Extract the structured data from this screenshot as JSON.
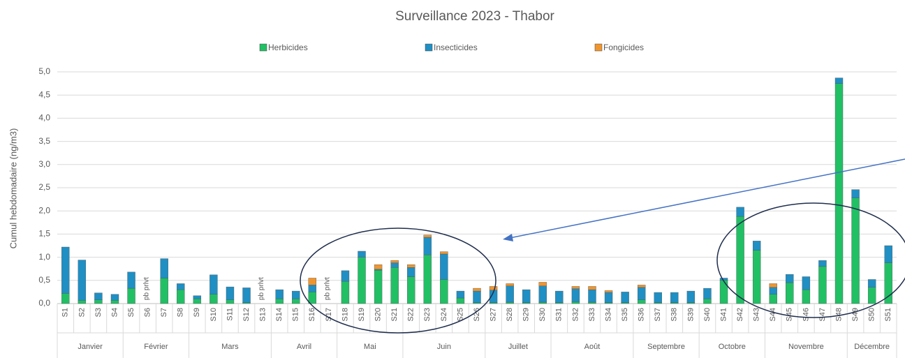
{
  "chart_data": {
    "type": "bar",
    "stacked": true,
    "title": "Surveillance 2023 - Thabor",
    "y_label": "Cumul hebdomadaire (ng/m3)",
    "categories": [
      "S1",
      "S2",
      "S3",
      "S4",
      "S5",
      "S6",
      "S7",
      "S8",
      "S9",
      "S10",
      "S11",
      "S12",
      "S13",
      "S14",
      "S15",
      "S16",
      "S17",
      "S18",
      "S19",
      "S20",
      "S21",
      "S22",
      "S23",
      "S24",
      "S25",
      "S26",
      "S27",
      "S28",
      "S29",
      "S30",
      "S31",
      "S32",
      "S33",
      "S34",
      "S35",
      "S36",
      "S37",
      "S38",
      "S39",
      "S40",
      "S41",
      "S42",
      "S43",
      "S44",
      "S45",
      "S46",
      "S47",
      "S48",
      "S49",
      "S50",
      "S51"
    ],
    "series": [
      {
        "name": "Herbicides",
        "color": "#21c065",
        "values": [
          0.22,
          0.07,
          0.08,
          0.07,
          0.33,
          null,
          0.55,
          0.3,
          0.1,
          0.2,
          0.08,
          0.02,
          null,
          0.1,
          0.1,
          0.25,
          null,
          0.48,
          1.0,
          0.72,
          0.78,
          0.58,
          1.05,
          0.52,
          0.12,
          0.02,
          0.02,
          0.03,
          0.02,
          0.03,
          0.02,
          0.04,
          0.03,
          0.02,
          0.02,
          0.08,
          0.02,
          0.02,
          0.02,
          0.1,
          0.5,
          1.88,
          1.15,
          0.2,
          0.45,
          0.3,
          0.8,
          4.75,
          2.28,
          0.35,
          0.88
        ]
      },
      {
        "name": "Insecticides",
        "color": "#1f8fc4",
        "values": [
          1.0,
          0.87,
          0.15,
          0.13,
          0.35,
          null,
          0.42,
          0.13,
          0.07,
          0.42,
          0.28,
          0.32,
          null,
          0.2,
          0.17,
          0.15,
          null,
          0.23,
          0.13,
          0.02,
          0.1,
          0.2,
          0.38,
          0.55,
          0.15,
          0.25,
          0.27,
          0.35,
          0.28,
          0.35,
          0.25,
          0.28,
          0.27,
          0.22,
          0.23,
          0.27,
          0.22,
          0.22,
          0.25,
          0.23,
          0.05,
          0.2,
          0.2,
          0.15,
          0.18,
          0.28,
          0.13,
          0.12,
          0.18,
          0.17,
          0.37
        ]
      },
      {
        "name": "Fongicides",
        "color": "#f0952e",
        "values": [
          0,
          0,
          0,
          0,
          0,
          null,
          0,
          0,
          0,
          0,
          0,
          0,
          null,
          0,
          0,
          0.15,
          null,
          0,
          0,
          0.1,
          0.05,
          0.06,
          0.05,
          0.05,
          0,
          0.06,
          0.08,
          0.05,
          0,
          0.08,
          0,
          0.05,
          0.07,
          0.04,
          0,
          0.05,
          0,
          0,
          0,
          0,
          0,
          0,
          0,
          0.08,
          0,
          0,
          0,
          0,
          0,
          0,
          0
        ]
      }
    ],
    "annotations": [
      "pb prlvt",
      "pb prlvt",
      "pb prlvt"
    ],
    "months": [
      {
        "label": "Janvier",
        "span": 4
      },
      {
        "label": "Février",
        "span": 4
      },
      {
        "label": "Mars",
        "span": 5
      },
      {
        "label": "Avril",
        "span": 4
      },
      {
        "label": "Mai",
        "span": 4
      },
      {
        "label": "Juin",
        "span": 5
      },
      {
        "label": "Juillet",
        "span": 4
      },
      {
        "label": "Août",
        "span": 5
      },
      {
        "label": "Septembre",
        "span": 4
      },
      {
        "label": "Octobre",
        "span": 4
      },
      {
        "label": "Novembre",
        "span": 5
      },
      {
        "label": "Décembre",
        "span": 3
      }
    ],
    "ylim": [
      0,
      5
    ],
    "yticks": [
      {
        "value": 0,
        "label": "0,0"
      },
      {
        "value": 0.5,
        "label": "0,5"
      },
      {
        "value": 1,
        "label": "1,0"
      },
      {
        "value": 1.5,
        "label": "1,5"
      },
      {
        "value": 2,
        "label": "2,0"
      },
      {
        "value": 2.5,
        "label": "2,5"
      },
      {
        "value": 3,
        "label": "3,0"
      },
      {
        "value": 3.5,
        "label": "3,5"
      },
      {
        "value": 4,
        "label": "4,0"
      },
      {
        "value": 4.5,
        "label": "4,5"
      },
      {
        "value": 5,
        "label": "5,0"
      }
    ],
    "grid": true
  }
}
